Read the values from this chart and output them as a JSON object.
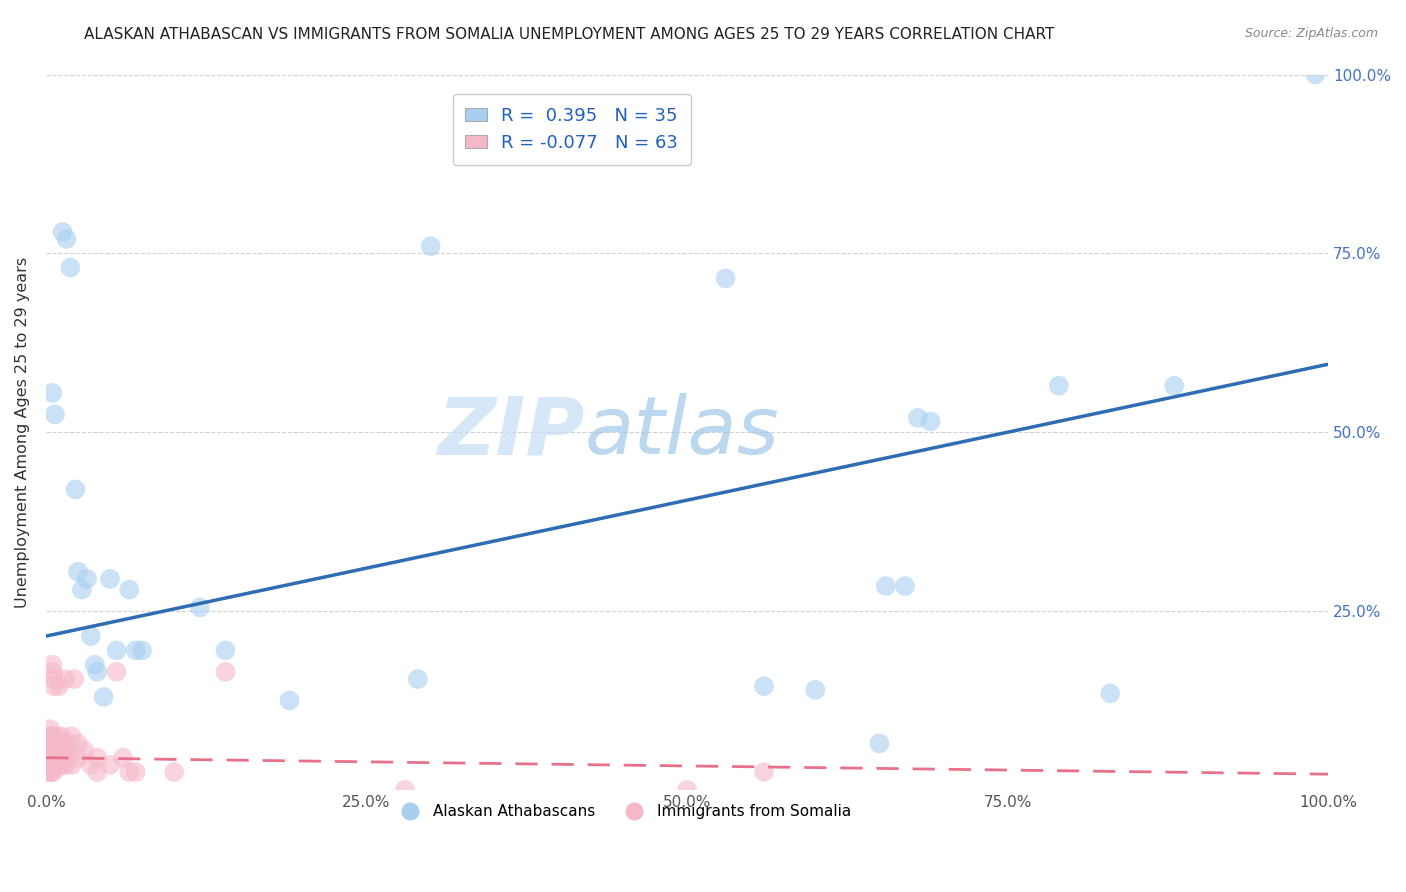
{
  "title": "ALASKAN ATHABASCAN VS IMMIGRANTS FROM SOMALIA UNEMPLOYMENT AMONG AGES 25 TO 29 YEARS CORRELATION CHART",
  "source": "Source: ZipAtlas.com",
  "ylabel": "Unemployment Among Ages 25 to 29 years",
  "blue_R": 0.395,
  "blue_N": 35,
  "pink_R": -0.077,
  "pink_N": 63,
  "blue_fill": "#a8cef0",
  "pink_fill": "#f5b8c8",
  "blue_line_color": "#2e6db4",
  "pink_line_color": "#e8708a",
  "watermark_zip": "ZIP",
  "watermark_atlas": "atlas",
  "blue_points": [
    [
      0.005,
      0.555
    ],
    [
      0.007,
      0.525
    ],
    [
      0.013,
      0.78
    ],
    [
      0.016,
      0.77
    ],
    [
      0.019,
      0.73
    ],
    [
      0.023,
      0.42
    ],
    [
      0.025,
      0.305
    ],
    [
      0.028,
      0.28
    ],
    [
      0.032,
      0.295
    ],
    [
      0.035,
      0.215
    ],
    [
      0.038,
      0.175
    ],
    [
      0.04,
      0.165
    ],
    [
      0.045,
      0.13
    ],
    [
      0.05,
      0.295
    ],
    [
      0.055,
      0.195
    ],
    [
      0.065,
      0.28
    ],
    [
      0.07,
      0.195
    ],
    [
      0.075,
      0.195
    ],
    [
      0.12,
      0.255
    ],
    [
      0.14,
      0.195
    ],
    [
      0.19,
      0.125
    ],
    [
      0.29,
      0.155
    ],
    [
      0.3,
      0.76
    ],
    [
      0.53,
      0.715
    ],
    [
      0.56,
      0.145
    ],
    [
      0.6,
      0.14
    ],
    [
      0.655,
      0.285
    ],
    [
      0.67,
      0.285
    ],
    [
      0.68,
      0.52
    ],
    [
      0.69,
      0.515
    ],
    [
      0.79,
      0.565
    ],
    [
      0.83,
      0.135
    ],
    [
      0.88,
      0.565
    ],
    [
      0.99,
      1.0
    ],
    [
      0.65,
      0.065
    ]
  ],
  "pink_points": [
    [
      0.0,
      0.045
    ],
    [
      0.001,
      0.025
    ],
    [
      0.001,
      0.055
    ],
    [
      0.002,
      0.035
    ],
    [
      0.002,
      0.065
    ],
    [
      0.002,
      0.075
    ],
    [
      0.003,
      0.025
    ],
    [
      0.003,
      0.045
    ],
    [
      0.003,
      0.055
    ],
    [
      0.003,
      0.085
    ],
    [
      0.004,
      0.025
    ],
    [
      0.004,
      0.045
    ],
    [
      0.004,
      0.065
    ],
    [
      0.004,
      0.075
    ],
    [
      0.005,
      0.035
    ],
    [
      0.005,
      0.055
    ],
    [
      0.005,
      0.075
    ],
    [
      0.005,
      0.165
    ],
    [
      0.005,
      0.175
    ],
    [
      0.006,
      0.025
    ],
    [
      0.006,
      0.045
    ],
    [
      0.006,
      0.065
    ],
    [
      0.006,
      0.145
    ],
    [
      0.007,
      0.035
    ],
    [
      0.007,
      0.065
    ],
    [
      0.007,
      0.155
    ],
    [
      0.008,
      0.045
    ],
    [
      0.008,
      0.075
    ],
    [
      0.009,
      0.035
    ],
    [
      0.009,
      0.055
    ],
    [
      0.01,
      0.035
    ],
    [
      0.01,
      0.055
    ],
    [
      0.01,
      0.145
    ],
    [
      0.011,
      0.065
    ],
    [
      0.012,
      0.045
    ],
    [
      0.012,
      0.075
    ],
    [
      0.013,
      0.035
    ],
    [
      0.013,
      0.055
    ],
    [
      0.014,
      0.065
    ],
    [
      0.015,
      0.035
    ],
    [
      0.015,
      0.155
    ],
    [
      0.016,
      0.055
    ],
    [
      0.017,
      0.045
    ],
    [
      0.018,
      0.065
    ],
    [
      0.02,
      0.035
    ],
    [
      0.02,
      0.075
    ],
    [
      0.022,
      0.155
    ],
    [
      0.025,
      0.045
    ],
    [
      0.025,
      0.065
    ],
    [
      0.03,
      0.055
    ],
    [
      0.035,
      0.035
    ],
    [
      0.04,
      0.025
    ],
    [
      0.04,
      0.045
    ],
    [
      0.05,
      0.035
    ],
    [
      0.055,
      0.165
    ],
    [
      0.06,
      0.045
    ],
    [
      0.065,
      0.025
    ],
    [
      0.07,
      0.025
    ],
    [
      0.1,
      0.025
    ],
    [
      0.14,
      0.165
    ],
    [
      0.28,
      0.0
    ],
    [
      0.5,
      0.0
    ],
    [
      0.56,
      0.025
    ]
  ],
  "xlim": [
    0,
    1.0
  ],
  "ylim": [
    0,
    1.0
  ],
  "xticks": [
    0.0,
    0.25,
    0.5,
    0.75,
    1.0
  ],
  "yticks": [
    0.0,
    0.25,
    0.5,
    0.75,
    1.0
  ],
  "xticklabels": [
    "0.0%",
    "25.0%",
    "50.0%",
    "75.0%",
    "100.0%"
  ],
  "right_yticklabels": [
    "",
    "25.0%",
    "50.0%",
    "75.0%",
    "100.0%"
  ],
  "blue_trend": [
    0.0,
    1.0,
    0.215,
    0.595
  ],
  "pink_trend": [
    0.0,
    1.0,
    0.045,
    0.022
  ]
}
